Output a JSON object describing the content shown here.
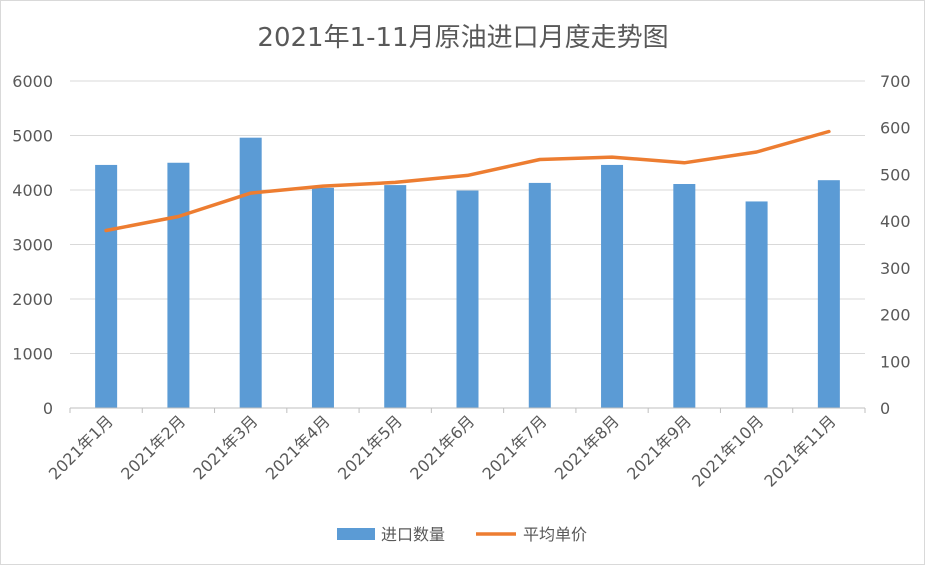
{
  "chart_data": {
    "type": "bar",
    "title": "2021年1-11月原油进口月度走势图",
    "categories": [
      "2021年1月",
      "2021年2月",
      "2021年3月",
      "2021年4月",
      "2021年5月",
      "2021年6月",
      "2021年7月",
      "2021年8月",
      "2021年9月",
      "2021年10月",
      "2021年11月"
    ],
    "series": [
      {
        "name": "进口数量",
        "type": "bar",
        "axis": "left",
        "color": "#5b9bd5",
        "values": [
          4460,
          4500,
          4960,
          4040,
          4090,
          3990,
          4130,
          4460,
          4110,
          3790,
          4180
        ]
      },
      {
        "name": "平均单价",
        "type": "line",
        "axis": "right",
        "color": "#ed7d31",
        "values": [
          380,
          410,
          460,
          475,
          483,
          498,
          532,
          537,
          525,
          548,
          592
        ]
      }
    ],
    "y_left": {
      "min": 0,
      "max": 6000,
      "ticks": [
        "0",
        "1000",
        "2000",
        "3000",
        "4000",
        "5000",
        "6000"
      ]
    },
    "y_right": {
      "min": 0,
      "max": 700,
      "ticks": [
        "0",
        "100",
        "200",
        "300",
        "400",
        "500",
        "600",
        "700"
      ]
    },
    "grid": true,
    "legend_position": "bottom"
  }
}
